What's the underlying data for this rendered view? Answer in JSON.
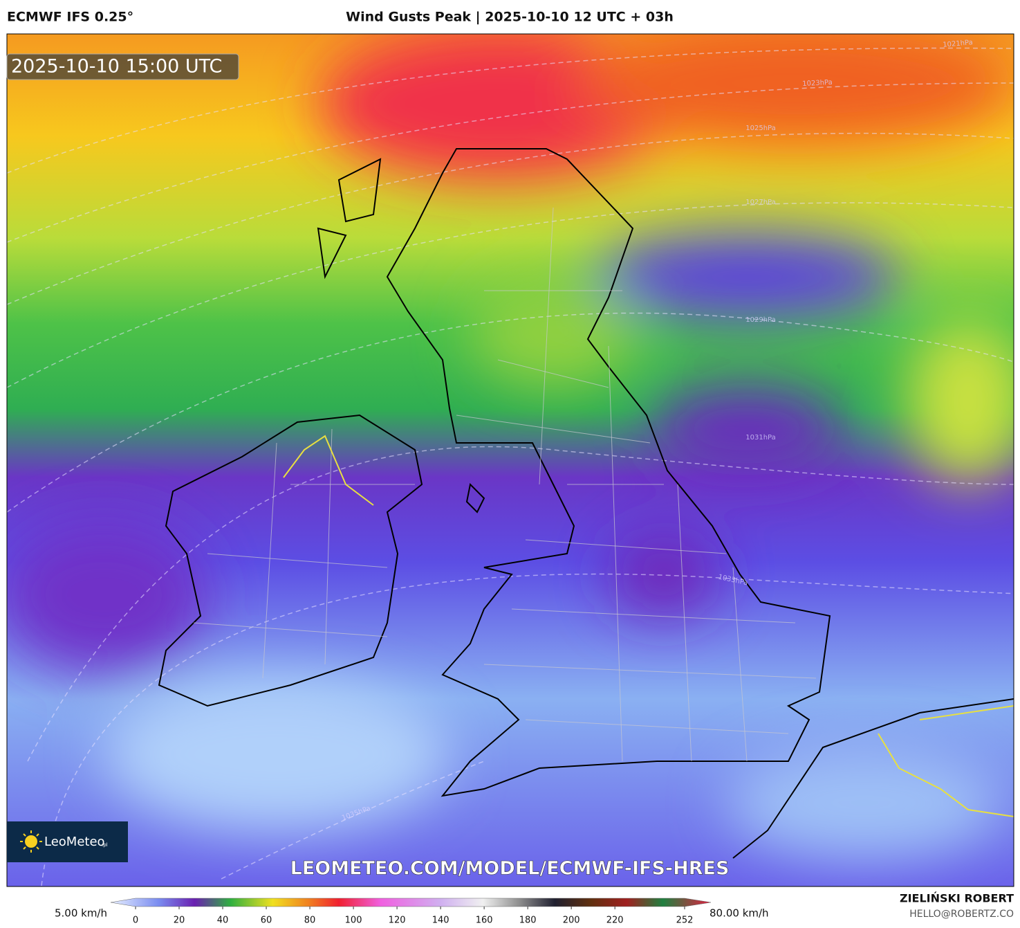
{
  "header": {
    "model": "ECMWF IFS 0.25°",
    "title": "Wind Gusts Peak | 2025-10-10 12 UTC + 03h"
  },
  "map": {
    "valid_time": "2025-10-10 15:00 UTC",
    "isobar_labels": [
      "1021hPa",
      "1023hPa",
      "1025hPa",
      "1027hPa",
      "1029hPa",
      "1031hPa",
      "1033hPa",
      "1035hPa"
    ],
    "logo": {
      "name": "LeoMeteo",
      "suffix": ".pl"
    },
    "url": "LEOMETEO.COM/MODEL/ECMWF-IFS-HRES"
  },
  "colorbar": {
    "min_label": "5.00 km/h",
    "max_label": "80.00 km/h",
    "ticks": [
      0,
      20,
      40,
      60,
      80,
      100,
      120,
      140,
      160,
      180,
      200,
      220,
      252
    ]
  },
  "credits": {
    "author": "ZIELIŃSKI ROBERT",
    "email": "HELLO@ROBERTZ.CO"
  }
}
